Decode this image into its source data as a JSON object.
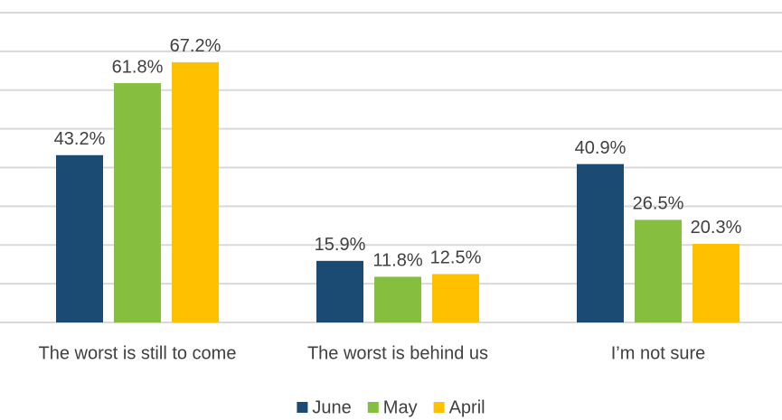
{
  "chart_data": {
    "type": "bar",
    "categories": [
      "The worst is still to come",
      "The worst is behind us",
      "I’m not sure"
    ],
    "series": [
      {
        "name": "June",
        "color": "#1b4a72",
        "values": [
          43.2,
          15.9,
          40.9
        ],
        "value_labels": [
          "43.2%",
          "15.9%",
          "40.9%"
        ]
      },
      {
        "name": "May",
        "color": "#86bf3f",
        "values": [
          61.8,
          11.8,
          26.5
        ],
        "value_labels": [
          "61.8%",
          "11.8%",
          "26.5%"
        ]
      },
      {
        "name": "April",
        "color": "#ffc000",
        "values": [
          67.2,
          12.5,
          20.3
        ],
        "value_labels": [
          "67.2%",
          "12.5%",
          "20.3%"
        ]
      }
    ],
    "ylim": [
      0,
      80
    ],
    "yticks": [
      0,
      10,
      20,
      30,
      40,
      50,
      60,
      70,
      80
    ],
    "grid": true,
    "legend": "bottom"
  }
}
